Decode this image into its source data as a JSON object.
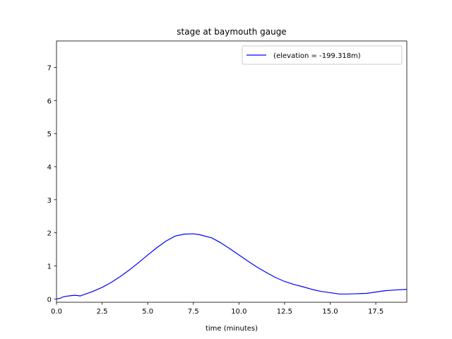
{
  "chart_data": {
    "type": "line",
    "title": "stage at baymouth gauge",
    "xlabel": "time (minutes)",
    "ylabel": "",
    "xlim": [
      0,
      19.2
    ],
    "ylim": [
      -0.1,
      7.8
    ],
    "xticks": [
      0.0,
      2.5,
      5.0,
      7.5,
      10.0,
      12.5,
      15.0,
      17.5
    ],
    "xtick_labels": [
      "0.0",
      "2.5",
      "5.0",
      "7.5",
      "10.0",
      "12.5",
      "15.0",
      "17.5"
    ],
    "yticks": [
      0,
      1,
      2,
      3,
      4,
      5,
      6,
      7
    ],
    "ytick_labels": [
      "0",
      "1",
      "2",
      "3",
      "4",
      "5",
      "6",
      "7"
    ],
    "grid": false,
    "legend_position": "top-right",
    "series": [
      {
        "name": " (elevation = -199.318m)",
        "color": "#0000ff",
        "x": [
          0.0,
          0.2,
          0.3,
          0.5,
          0.8,
          1.0,
          1.2,
          1.3,
          1.5,
          2.0,
          2.5,
          3.0,
          3.5,
          4.0,
          4.5,
          5.0,
          5.5,
          6.0,
          6.5,
          7.0,
          7.5,
          7.8,
          8.0,
          8.5,
          9.0,
          9.5,
          10.0,
          10.5,
          11.0,
          11.5,
          12.0,
          12.5,
          13.0,
          13.5,
          14.0,
          14.5,
          15.0,
          15.5,
          16.0,
          16.5,
          17.0,
          17.5,
          18.0,
          18.5,
          19.2
        ],
        "y": [
          0.0,
          0.02,
          0.05,
          0.08,
          0.1,
          0.11,
          0.1,
          0.09,
          0.13,
          0.23,
          0.35,
          0.5,
          0.68,
          0.88,
          1.1,
          1.33,
          1.55,
          1.75,
          1.9,
          1.96,
          1.97,
          1.95,
          1.92,
          1.85,
          1.7,
          1.52,
          1.33,
          1.14,
          0.96,
          0.8,
          0.65,
          0.53,
          0.44,
          0.37,
          0.29,
          0.23,
          0.19,
          0.15,
          0.15,
          0.16,
          0.17,
          0.21,
          0.25,
          0.27,
          0.29
        ]
      }
    ]
  }
}
